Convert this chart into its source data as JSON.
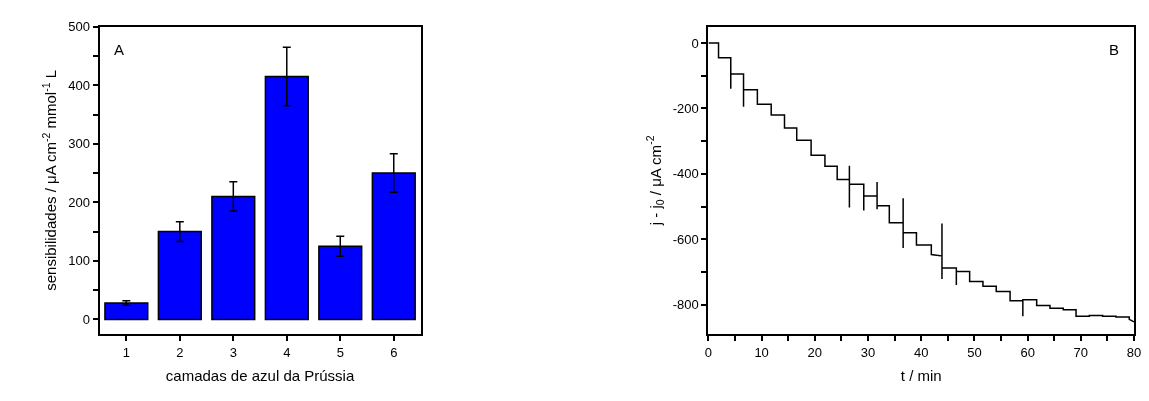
{
  "chart_data": [
    {
      "type": "bar",
      "categories": [
        "1",
        "2",
        "3",
        "4",
        "5",
        "6"
      ],
      "values": [
        28,
        150,
        210,
        415,
        125,
        250
      ],
      "errors": [
        4,
        17,
        25,
        50,
        17,
        33
      ],
      "color": "#0000ff",
      "xlabel": "camadas de azul da Prússia",
      "ylabel": "sensibilidades / μA cm$^{-2}$ mmol$^{-1}$ L",
      "ylim": [
        -25,
        500
      ],
      "yticks": [
        0,
        {
          "value": 50,
          "label": null
        },
        100,
        {
          "value": 150,
          "label": null
        },
        200,
        {
          "value": 250,
          "label": null
        },
        300,
        {
          "value": 350,
          "label": null
        },
        400,
        {
          "value": 450,
          "label": null
        },
        500
      ],
      "annotations": [
        "A"
      ]
    },
    {
      "type": "line",
      "series": [
        {
          "color": "#000000",
          "x": [
            0,
            1.9,
            1.9,
            4.2,
            4.2,
            4.2,
            6.6,
            6.6,
            6.6,
            9.2,
            9.2,
            11.8,
            11.8,
            14.3,
            14.3,
            16.6,
            16.6,
            19.3,
            19.3,
            21.9,
            21.9,
            24.2,
            24.2,
            26.5,
            26.5,
            26.5,
            26.5,
            29.2,
            29.2,
            29.2,
            31.7,
            31.7,
            31.7,
            31.7,
            34,
            34,
            36.6,
            36.6,
            36.6,
            36.6,
            39.1,
            39.1,
            41.9,
            41.9,
            43.9,
            43.9,
            43.9,
            43.9,
            46.6,
            46.6,
            46.6,
            49.1,
            49.1,
            51.6,
            51.6,
            54.1,
            54.1,
            56.7,
            56.7,
            59.1,
            59.1,
            59.1,
            61.7,
            61.7,
            64.2,
            64.2,
            66.7,
            66.7,
            69.1,
            69.1,
            71.6,
            71.6,
            74.1,
            74.1,
            76.6,
            76.6,
            79.1,
            79.1,
            80
          ],
          "values": [
            0,
            0,
            -45,
            -45,
            -140,
            -95,
            -95,
            -195,
            -143,
            -143,
            -187,
            -187,
            -220,
            -220,
            -260,
            -260,
            -297,
            -297,
            -343,
            -343,
            -377,
            -377,
            -417,
            -417,
            -375,
            -503,
            -432,
            -432,
            -512,
            -468,
            -468,
            -425,
            -508,
            -498,
            -498,
            -550,
            -550,
            -475,
            -627,
            -580,
            -580,
            -618,
            -618,
            -647,
            -651,
            -552,
            -722,
            -688,
            -688,
            -740,
            -699,
            -699,
            -729,
            -729,
            -744,
            -744,
            -760,
            -760,
            -788,
            -788,
            -836,
            -785,
            -785,
            -803,
            -803,
            -811,
            -811,
            -816,
            -816,
            -836,
            -836,
            -833,
            -833,
            -836,
            -836,
            -838,
            -838,
            -845,
            -853
          ]
        }
      ],
      "xlabel": "t / min",
      "ylabel": "j - j$_{0}$ / μA cm$^{-2}$",
      "xlim": [
        0,
        80
      ],
      "xticks": [
        0,
        {
          "value": 5,
          "label": null
        },
        10,
        {
          "value": 15,
          "label": null
        },
        20,
        {
          "value": 25,
          "label": null
        },
        30,
        {
          "value": 35,
          "label": null
        },
        40,
        {
          "value": 45,
          "label": null
        },
        50,
        {
          "value": 55,
          "label": null
        },
        60,
        {
          "value": 65,
          "label": null
        },
        70,
        {
          "value": 75,
          "label": null
        },
        80
      ],
      "ylim": [
        -890,
        50
      ],
      "yticks": [
        0,
        {
          "value": -100,
          "label": null
        },
        -200,
        {
          "value": -300,
          "label": null
        },
        -400,
        {
          "value": -500,
          "label": null
        },
        -600,
        {
          "value": -700,
          "label": null
        },
        -800
      ],
      "annotations": [
        "B"
      ],
      "marker": "none",
      "line_style": "solid"
    }
  ]
}
